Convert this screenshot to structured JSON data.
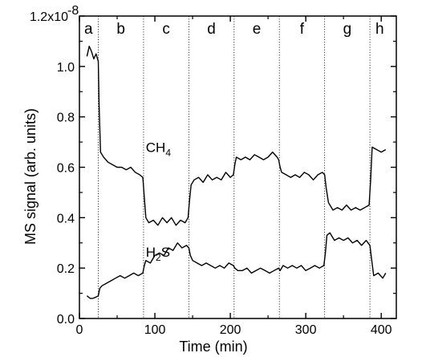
{
  "chart_data": {
    "type": "line",
    "title": "",
    "xlabel": "Time (min)",
    "ylabel": "MS signal (arb. units)",
    "xlim": [
      0,
      420
    ],
    "ylim": [
      0.0,
      1.2
    ],
    "x_ticks": [
      0,
      100,
      200,
      300,
      400
    ],
    "x_tick_labels": [
      "0",
      "100",
      "200",
      "300",
      "400"
    ],
    "y_ticks": [
      0.0,
      0.2,
      0.4,
      0.6,
      0.8,
      1.0,
      1.2
    ],
    "y_tick_labels": [
      "0.0",
      "0.2",
      "0.4",
      "0.6",
      "0.8",
      "1.0",
      "1.2x10"
    ],
    "y_top_exponent": "-8",
    "region_boundaries": [
      25,
      85,
      145,
      205,
      265,
      325,
      385
    ],
    "regions": [
      {
        "label": "a",
        "x": 12
      },
      {
        "label": "b",
        "x": 55
      },
      {
        "label": "c",
        "x": 115
      },
      {
        "label": "d",
        "x": 175
      },
      {
        "label": "e",
        "x": 235
      },
      {
        "label": "f",
        "x": 295
      },
      {
        "label": "g",
        "x": 355
      },
      {
        "label": "h",
        "x": 398
      }
    ],
    "series_labels": [
      {
        "name": "CH",
        "sub": "4",
        "suffix": "",
        "x": 88,
        "y": 0.66
      },
      {
        "name": "H",
        "sub": "2",
        "suffix": "S",
        "x": 88,
        "y": 0.245
      }
    ],
    "series": [
      {
        "x": [
          10,
          13,
          16,
          19,
          22,
          25,
          26,
          28,
          32,
          38,
          44,
          50,
          56,
          62,
          68,
          74,
          80,
          84,
          86,
          88,
          92,
          98,
          104,
          110,
          116,
          122,
          128,
          134,
          140,
          144,
          146,
          148,
          152,
          158,
          164,
          170,
          176,
          182,
          188,
          194,
          200,
          204,
          206,
          208,
          214,
          220,
          226,
          232,
          238,
          244,
          250,
          256,
          262,
          264,
          266,
          268,
          274,
          280,
          286,
          292,
          298,
          304,
          310,
          316,
          322,
          325,
          327,
          330,
          336,
          342,
          348,
          354,
          360,
          366,
          372,
          378,
          384,
          386,
          388,
          394,
          400,
          406
        ],
        "values": [
          1.04,
          1.08,
          1.06,
          1.03,
          1.05,
          1.02,
          0.85,
          0.66,
          0.64,
          0.62,
          0.61,
          0.6,
          0.6,
          0.59,
          0.6,
          0.58,
          0.57,
          0.56,
          0.48,
          0.4,
          0.38,
          0.39,
          0.37,
          0.4,
          0.38,
          0.4,
          0.37,
          0.39,
          0.38,
          0.4,
          0.47,
          0.53,
          0.55,
          0.56,
          0.54,
          0.57,
          0.55,
          0.56,
          0.55,
          0.58,
          0.56,
          0.57,
          0.61,
          0.64,
          0.63,
          0.64,
          0.63,
          0.65,
          0.64,
          0.63,
          0.64,
          0.66,
          0.64,
          0.63,
          0.6,
          0.58,
          0.57,
          0.56,
          0.57,
          0.56,
          0.58,
          0.57,
          0.55,
          0.57,
          0.58,
          0.57,
          0.52,
          0.46,
          0.43,
          0.44,
          0.43,
          0.45,
          0.43,
          0.44,
          0.43,
          0.44,
          0.45,
          0.55,
          0.68,
          0.67,
          0.66,
          0.67
        ]
      },
      {
        "x": [
          10,
          14,
          18,
          22,
          25,
          27,
          30,
          36,
          42,
          48,
          54,
          60,
          66,
          72,
          78,
          84,
          86,
          88,
          94,
          100,
          106,
          112,
          118,
          124,
          130,
          136,
          142,
          145,
          147,
          150,
          156,
          162,
          168,
          174,
          180,
          186,
          192,
          198,
          204,
          206,
          210,
          216,
          222,
          228,
          234,
          240,
          246,
          252,
          258,
          264,
          266,
          270,
          276,
          282,
          288,
          294,
          300,
          306,
          312,
          318,
          324,
          326,
          328,
          332,
          338,
          344,
          350,
          356,
          362,
          368,
          374,
          380,
          385,
          387,
          390,
          396,
          402,
          406
        ],
        "values": [
          0.09,
          0.08,
          0.08,
          0.085,
          0.09,
          0.12,
          0.13,
          0.14,
          0.15,
          0.16,
          0.17,
          0.16,
          0.17,
          0.18,
          0.17,
          0.18,
          0.21,
          0.23,
          0.22,
          0.25,
          0.26,
          0.25,
          0.28,
          0.27,
          0.3,
          0.28,
          0.29,
          0.28,
          0.25,
          0.23,
          0.22,
          0.21,
          0.22,
          0.21,
          0.2,
          0.21,
          0.2,
          0.22,
          0.21,
          0.2,
          0.19,
          0.19,
          0.2,
          0.18,
          0.19,
          0.2,
          0.19,
          0.18,
          0.19,
          0.2,
          0.19,
          0.21,
          0.2,
          0.21,
          0.2,
          0.21,
          0.19,
          0.2,
          0.21,
          0.2,
          0.21,
          0.26,
          0.33,
          0.34,
          0.31,
          0.32,
          0.31,
          0.32,
          0.3,
          0.31,
          0.29,
          0.31,
          0.29,
          0.24,
          0.17,
          0.18,
          0.16,
          0.18
        ]
      }
    ]
  }
}
